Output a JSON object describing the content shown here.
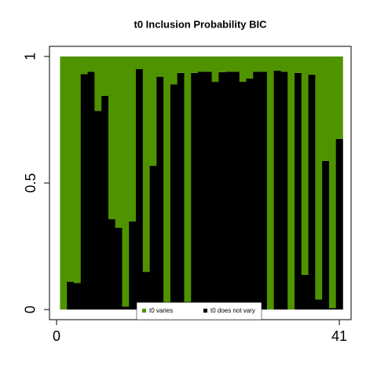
{
  "chart_data": {
    "type": "stacked_bar",
    "title": "t0 Inclusion Probability BIC",
    "x": [
      1,
      2,
      3,
      4,
      5,
      6,
      7,
      8,
      9,
      10,
      11,
      12,
      13,
      14,
      15,
      16,
      17,
      18,
      19,
      20,
      21,
      22,
      23,
      24,
      25,
      26,
      27,
      28,
      29,
      30,
      31,
      32,
      33,
      34,
      35,
      36,
      37,
      38,
      39,
      40,
      41
    ],
    "series": [
      {
        "name": "t0 varies",
        "color": "#4f9300",
        "values": [
          1,
          0.89,
          0.895,
          0.07,
          0.06,
          0.215,
          0.155,
          0.643,
          0.677,
          0.988,
          0.652,
          0.05,
          0.851,
          0.432,
          0.08,
          0.972,
          0.11,
          0.065,
          0.97,
          0.065,
          0.06,
          0.06,
          0.1,
          0.062,
          0.06,
          0.06,
          0.1,
          0.087,
          0.06,
          0.06,
          1,
          0.056,
          0.06,
          1,
          0.065,
          0.863,
          0.072,
          0.96,
          0.413,
          0.994,
          0.326
        ]
      },
      {
        "name": "t0 does not vary",
        "color": "#000000",
        "values": [
          0,
          0.11,
          0.105,
          0.93,
          0.94,
          0.785,
          0.845,
          0.357,
          0.323,
          0.012,
          0.348,
          0.95,
          0.149,
          0.568,
          0.92,
          0.028,
          0.89,
          0.935,
          0.03,
          0.935,
          0.94,
          0.94,
          0.9,
          0.938,
          0.94,
          0.94,
          0.9,
          0.913,
          0.94,
          0.94,
          0,
          0.944,
          0.94,
          0,
          0.935,
          0.137,
          0.928,
          0.04,
          0.587,
          0.006,
          0.674
        ]
      }
    ],
    "xlim": [
      -1.03,
      42.7
    ],
    "xticks": [
      0,
      41
    ],
    "ylim": [
      -0.04,
      1.04
    ],
    "yticks": [
      0,
      0.5,
      1
    ]
  }
}
